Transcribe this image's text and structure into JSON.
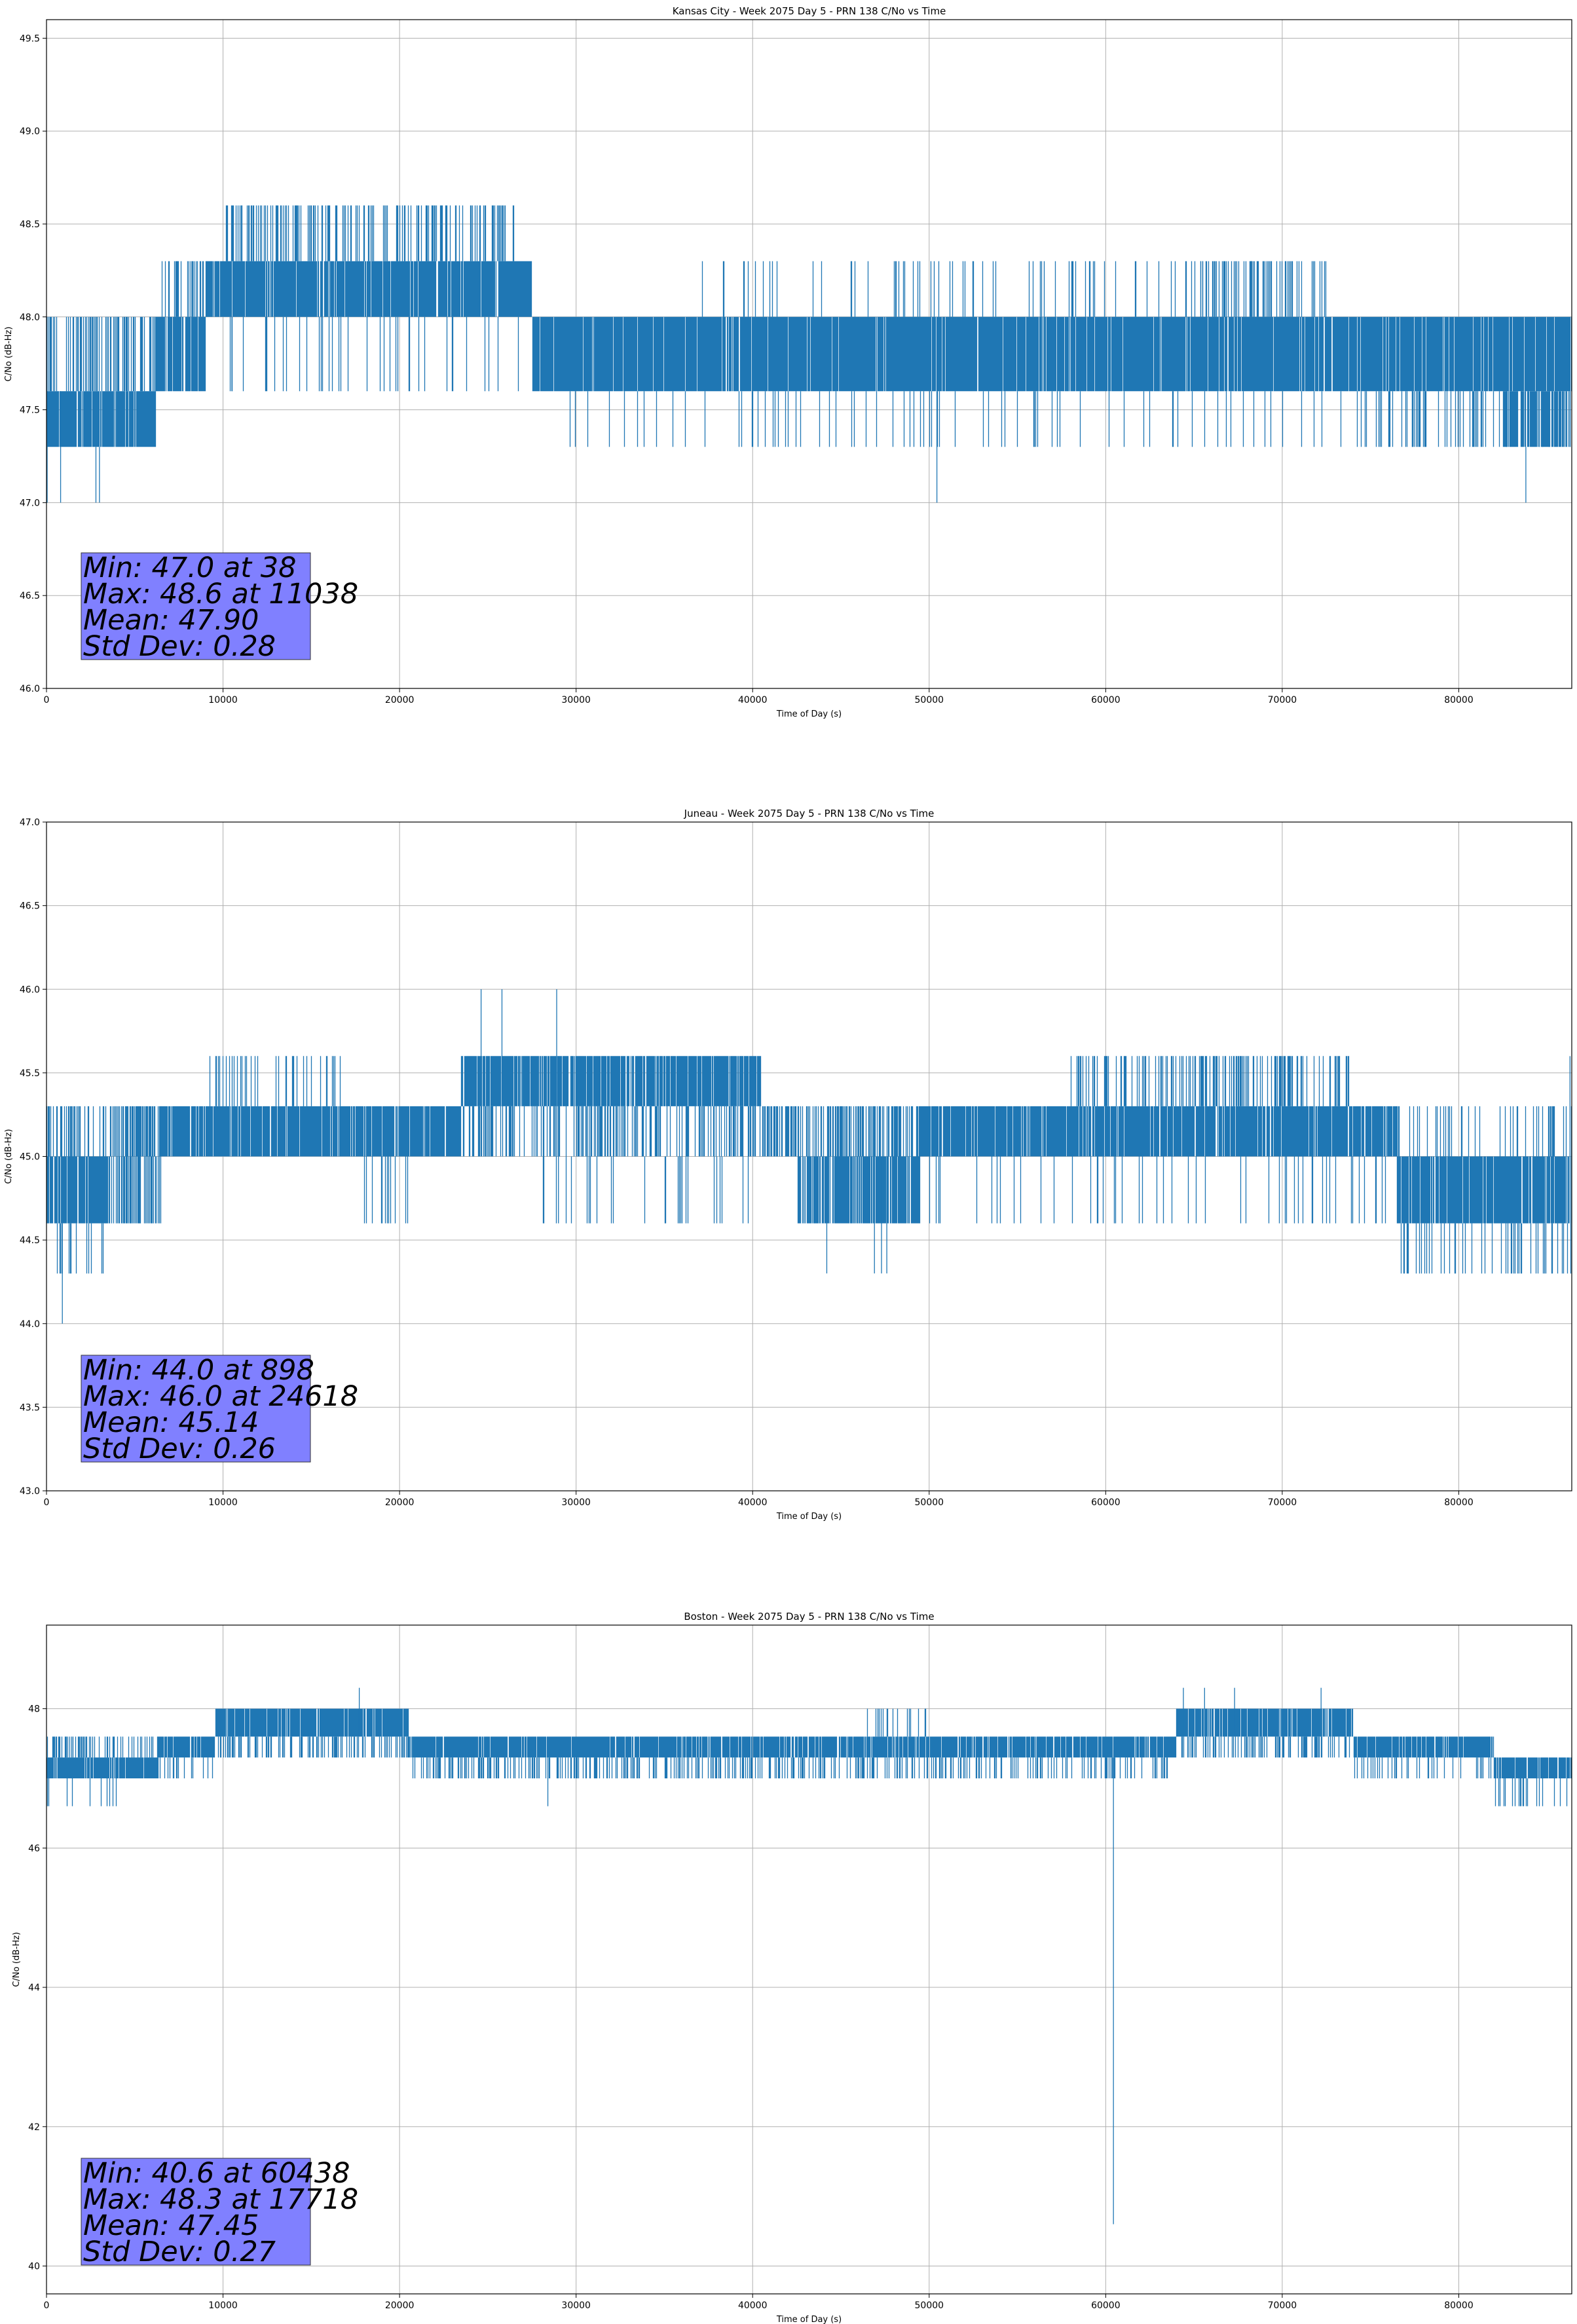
{
  "colors": {
    "series": "#1f77b4",
    "grid": "#b0b0b0",
    "stats_box": "#8080ff"
  },
  "chart_data": [
    {
      "type": "line",
      "title": "Kansas City - Week 2075 Day 5 - PRN 138 C/No vs Time",
      "xlabel": "Time of Day (s)",
      "ylabel": "C/No (dB-Hz)",
      "xlim": [
        0,
        86400
      ],
      "ylim": [
        46.0,
        49.6
      ],
      "xticks": [
        0,
        10000,
        20000,
        30000,
        40000,
        50000,
        60000,
        70000,
        80000
      ],
      "xtick_labels": [
        "0",
        "10000",
        "20000",
        "30000",
        "40000",
        "50000",
        "60000",
        "70000",
        "80000"
      ],
      "yticks": [
        46.0,
        46.5,
        47.0,
        47.5,
        48.0,
        48.5,
        49.0,
        49.5
      ],
      "ytick_labels": [
        "46.0",
        "46.5",
        "47.0",
        "47.5",
        "48.0",
        "48.5",
        "49.0",
        "49.5"
      ],
      "grid": true,
      "stats": [
        "Min: 47.0 at 38",
        "Max: 48.6 at 11038",
        "Mean: 47.90",
        "Std Dev: 0.28"
      ],
      "bands": [
        {
          "x0": 0,
          "x1": 6200,
          "low": 47.3,
          "high": 47.6,
          "occ": 0.9
        },
        {
          "x0": 0,
          "x1": 6200,
          "low": 47.6,
          "high": 48.0,
          "occ": 0.35
        },
        {
          "x0": 6200,
          "x1": 9000,
          "low": 47.6,
          "high": 48.0,
          "occ": 0.9
        },
        {
          "x0": 6200,
          "x1": 9000,
          "low": 48.0,
          "high": 48.3,
          "occ": 0.25
        },
        {
          "x0": 9000,
          "x1": 27500,
          "low": 48.0,
          "high": 48.3,
          "occ": 0.92
        },
        {
          "x0": 10000,
          "x1": 26500,
          "low": 48.3,
          "high": 48.6,
          "occ": 0.3
        },
        {
          "x0": 9000,
          "x1": 27500,
          "low": 47.6,
          "high": 48.0,
          "occ": 0.08
        },
        {
          "x0": 27500,
          "x1": 86400,
          "low": 47.6,
          "high": 48.0,
          "occ": 0.92
        },
        {
          "x0": 37000,
          "x1": 73000,
          "low": 48.0,
          "high": 48.3,
          "occ": 0.08
        },
        {
          "x0": 64500,
          "x1": 72500,
          "low": 48.0,
          "high": 48.3,
          "occ": 0.3
        },
        {
          "x0": 27500,
          "x1": 86400,
          "low": 47.3,
          "high": 47.6,
          "occ": 0.05
        },
        {
          "x0": 74000,
          "x1": 83000,
          "low": 47.3,
          "high": 47.6,
          "occ": 0.18
        },
        {
          "x0": 82500,
          "x1": 86400,
          "low": 47.3,
          "high": 47.6,
          "occ": 0.8
        }
      ],
      "spikes": [
        {
          "x": 38,
          "low": 47.0,
          "high": 48.0
        },
        {
          "x": 800,
          "low": 47.0,
          "high": 47.6
        },
        {
          "x": 2800,
          "low": 47.0,
          "high": 47.3
        },
        {
          "x": 3000,
          "low": 47.0,
          "high": 47.3
        },
        {
          "x": 10500,
          "low": 47.6,
          "high": 48.0
        },
        {
          "x": 11038,
          "low": 48.3,
          "high": 48.6
        },
        {
          "x": 50438,
          "low": 47.0,
          "high": 47.6
        },
        {
          "x": 83800,
          "low": 47.0,
          "high": 47.3
        }
      ]
    },
    {
      "type": "line",
      "title": "Juneau - Week 2075 Day 5 - PRN 138 C/No vs Time",
      "xlabel": "Time of Day (s)",
      "ylabel": "C/No (dB-Hz)",
      "xlim": [
        0,
        86400
      ],
      "ylim": [
        43.0,
        47.0
      ],
      "xticks": [
        0,
        10000,
        20000,
        30000,
        40000,
        50000,
        60000,
        70000,
        80000
      ],
      "xtick_labels": [
        "0",
        "10000",
        "20000",
        "30000",
        "40000",
        "50000",
        "60000",
        "70000",
        "80000"
      ],
      "yticks": [
        43.0,
        43.5,
        44.0,
        44.5,
        45.0,
        45.5,
        46.0,
        46.5,
        47.0
      ],
      "ytick_labels": [
        "43.0",
        "43.5",
        "44.0",
        "44.5",
        "45.0",
        "45.5",
        "46.0",
        "46.5",
        "47.0"
      ],
      "grid": true,
      "stats": [
        "Min: 44.0 at 898",
        "Max: 46.0 at 24618",
        "Mean: 45.14",
        "Std Dev: 0.26"
      ],
      "bands": [
        {
          "x0": 0,
          "x1": 3500,
          "low": 44.6,
          "high": 45.0,
          "occ": 0.85
        },
        {
          "x0": 0,
          "x1": 3500,
          "low": 45.0,
          "high": 45.3,
          "occ": 0.3
        },
        {
          "x0": 0,
          "x1": 3500,
          "low": 44.3,
          "high": 44.6,
          "occ": 0.15
        },
        {
          "x0": 3500,
          "x1": 6500,
          "low": 45.0,
          "high": 45.3,
          "occ": 0.6
        },
        {
          "x0": 3500,
          "x1": 6500,
          "low": 44.6,
          "high": 45.0,
          "occ": 0.6
        },
        {
          "x0": 6500,
          "x1": 23500,
          "low": 45.0,
          "high": 45.3,
          "occ": 0.9
        },
        {
          "x0": 9000,
          "x1": 17000,
          "low": 45.3,
          "high": 45.6,
          "occ": 0.2
        },
        {
          "x0": 18000,
          "x1": 20500,
          "low": 44.6,
          "high": 45.0,
          "occ": 0.15
        },
        {
          "x0": 23500,
          "x1": 40500,
          "low": 45.3,
          "high": 45.6,
          "occ": 0.88
        },
        {
          "x0": 23500,
          "x1": 40500,
          "low": 45.0,
          "high": 45.3,
          "occ": 0.35
        },
        {
          "x0": 28000,
          "x1": 40000,
          "low": 44.6,
          "high": 45.0,
          "occ": 0.08
        },
        {
          "x0": 40500,
          "x1": 49500,
          "low": 45.0,
          "high": 45.3,
          "occ": 0.5
        },
        {
          "x0": 42500,
          "x1": 49500,
          "low": 44.6,
          "high": 45.0,
          "occ": 0.85
        },
        {
          "x0": 49500,
          "x1": 76500,
          "low": 45.0,
          "high": 45.3,
          "occ": 0.9
        },
        {
          "x0": 58000,
          "x1": 74000,
          "low": 45.3,
          "high": 45.6,
          "occ": 0.3
        },
        {
          "x0": 50000,
          "x1": 76500,
          "low": 44.6,
          "high": 45.0,
          "occ": 0.08
        },
        {
          "x0": 76500,
          "x1": 86400,
          "low": 44.6,
          "high": 45.0,
          "occ": 0.88
        },
        {
          "x0": 76500,
          "x1": 86400,
          "low": 45.0,
          "high": 45.3,
          "occ": 0.2
        },
        {
          "x0": 76500,
          "x1": 86400,
          "low": 44.3,
          "high": 44.6,
          "occ": 0.15
        }
      ],
      "spikes": [
        {
          "x": 898,
          "low": 44.0,
          "high": 44.6
        },
        {
          "x": 24618,
          "low": 45.3,
          "high": 46.0
        },
        {
          "x": 25800,
          "low": 45.3,
          "high": 46.0
        },
        {
          "x": 28900,
          "low": 45.3,
          "high": 46.0
        },
        {
          "x": 29000,
          "low": 44.6,
          "high": 45.6
        },
        {
          "x": 44200,
          "low": 44.3,
          "high": 45.0
        },
        {
          "x": 46900,
          "low": 44.3,
          "high": 45.0
        },
        {
          "x": 47300,
          "low": 44.3,
          "high": 45.0
        },
        {
          "x": 47600,
          "low": 44.3,
          "high": 45.0
        },
        {
          "x": 86300,
          "low": 45.0,
          "high": 45.6
        }
      ]
    },
    {
      "type": "line",
      "title": "Boston - Week 2075 Day 5 - PRN 138 C/No vs Time",
      "xlabel": "Time of Day (s)",
      "ylabel": "C/No (dB-Hz)",
      "xlim": [
        0,
        86400
      ],
      "ylim": [
        39.6,
        49.2
      ],
      "xticks": [
        0,
        10000,
        20000,
        30000,
        40000,
        50000,
        60000,
        70000,
        80000
      ],
      "xtick_labels": [
        "0",
        "10000",
        "20000",
        "30000",
        "40000",
        "50000",
        "60000",
        "70000",
        "80000"
      ],
      "yticks": [
        40,
        42,
        44,
        46,
        48
      ],
      "ytick_labels": [
        "40",
        "42",
        "44",
        "46",
        "48"
      ],
      "grid": true,
      "stats": [
        "Min: 40.6 at 60438",
        "Max: 48.3 at 17718",
        "Mean: 47.45",
        "Std Dev: 0.27"
      ],
      "bands": [
        {
          "x0": 0,
          "x1": 6300,
          "low": 47.0,
          "high": 47.3,
          "occ": 0.9
        },
        {
          "x0": 0,
          "x1": 6300,
          "low": 47.3,
          "high": 47.6,
          "occ": 0.35
        },
        {
          "x0": 0,
          "x1": 4000,
          "low": 46.6,
          "high": 47.0,
          "occ": 0.12
        },
        {
          "x0": 6300,
          "x1": 9500,
          "low": 47.3,
          "high": 47.6,
          "occ": 0.85
        },
        {
          "x0": 6300,
          "x1": 9500,
          "low": 47.0,
          "high": 47.3,
          "occ": 0.2
        },
        {
          "x0": 9500,
          "x1": 20500,
          "low": 47.6,
          "high": 48.0,
          "occ": 0.9
        },
        {
          "x0": 9500,
          "x1": 20500,
          "low": 47.3,
          "high": 47.6,
          "occ": 0.35
        },
        {
          "x0": 20500,
          "x1": 64000,
          "low": 47.3,
          "high": 47.6,
          "occ": 0.9
        },
        {
          "x0": 20500,
          "x1": 64000,
          "low": 47.0,
          "high": 47.3,
          "occ": 0.3
        },
        {
          "x0": 46000,
          "x1": 50000,
          "low": 47.6,
          "high": 48.0,
          "occ": 0.15
        },
        {
          "x0": 64000,
          "x1": 74000,
          "low": 47.6,
          "high": 48.0,
          "occ": 0.9
        },
        {
          "x0": 64000,
          "x1": 74000,
          "low": 47.3,
          "high": 47.6,
          "occ": 0.3
        },
        {
          "x0": 74000,
          "x1": 82000,
          "low": 47.3,
          "high": 47.6,
          "occ": 0.88
        },
        {
          "x0": 74000,
          "x1": 82000,
          "low": 47.0,
          "high": 47.3,
          "occ": 0.2
        },
        {
          "x0": 82000,
          "x1": 86400,
          "low": 47.0,
          "high": 47.3,
          "occ": 0.9
        },
        {
          "x0": 82000,
          "x1": 86400,
          "low": 46.6,
          "high": 47.0,
          "occ": 0.2
        }
      ],
      "spikes": [
        {
          "x": 60438,
          "low": 40.6,
          "high": 47.3
        },
        {
          "x": 17718,
          "low": 47.6,
          "high": 48.3
        },
        {
          "x": 28400,
          "low": 46.6,
          "high": 47.3
        },
        {
          "x": 64400,
          "low": 47.6,
          "high": 48.3
        },
        {
          "x": 65600,
          "low": 47.6,
          "high": 48.3
        },
        {
          "x": 67300,
          "low": 47.6,
          "high": 48.3
        },
        {
          "x": 72200,
          "low": 47.6,
          "high": 48.3
        }
      ]
    }
  ]
}
